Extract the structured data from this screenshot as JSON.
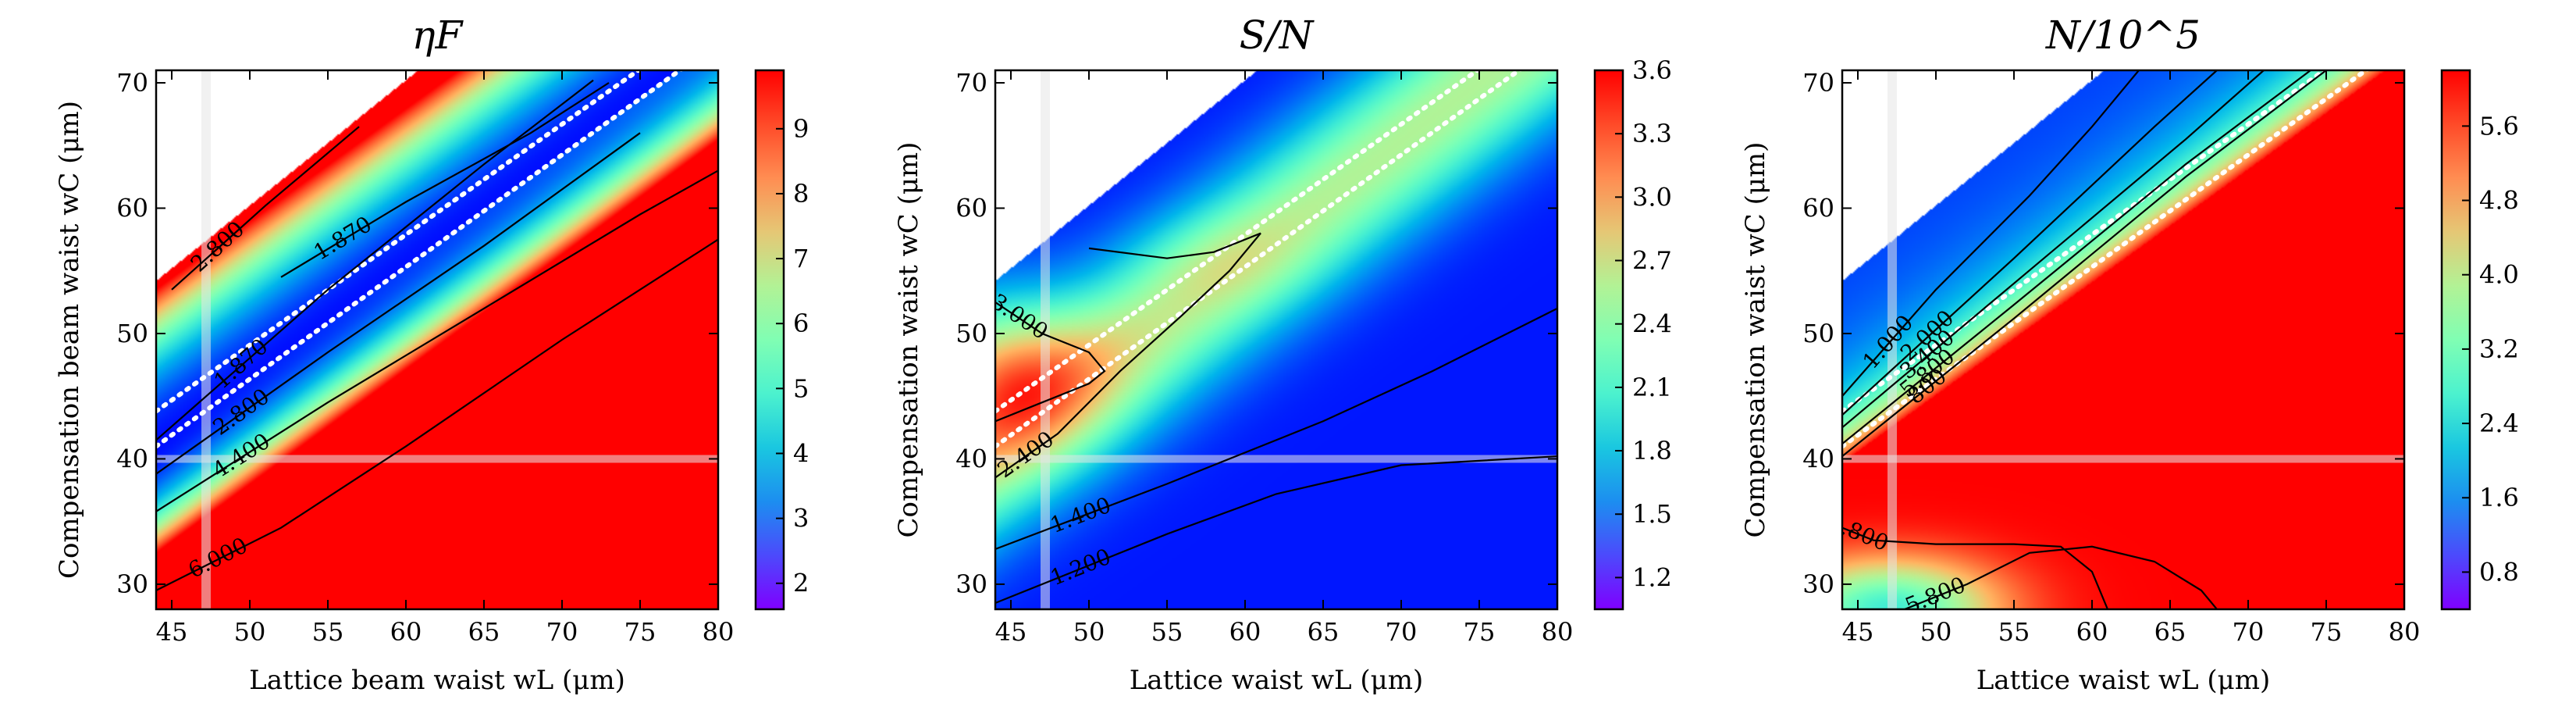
{
  "chart_data": [
    {
      "type": "heatmap",
      "title": "ηF",
      "xlabel": "Lattice beam waist wL (μm)",
      "ylabel": "Compensation beam waist wC (μm)",
      "xlim": [
        44,
        80
      ],
      "ylim": [
        28,
        71
      ],
      "x_ticks": [
        "45",
        "50",
        "55",
        "60",
        "65",
        "70",
        "75",
        "80"
      ],
      "y_ticks": [
        "30",
        "40",
        "50",
        "60",
        "70"
      ],
      "colorbar": {
        "range": [
          1.6,
          9.9
        ],
        "ticks": [
          "2",
          "3",
          "4",
          "5",
          "6",
          "7",
          "8",
          "9"
        ],
        "colormap": "rainbow"
      },
      "field": {
        "type": "eta",
        "masked_region": "wC > wL + 10.2 and wC > 1.1·wL + 3"
      },
      "contour_labels": [
        "2.800",
        "1.870",
        "1.870",
        "2.800",
        "4.400",
        "6.000"
      ],
      "contour_lines": [
        {
          "label": "2.800",
          "points": [
            [
              45,
              53.5
            ],
            [
              51,
              60.2
            ],
            [
              57,
              66.5
            ]
          ]
        },
        {
          "label": "1.870",
          "points": [
            [
              44,
              41.5
            ],
            [
              55,
              53.5
            ],
            [
              65,
              63.5
            ],
            [
              72,
              70.2
            ]
          ]
        },
        {
          "label": "1.870",
          "points": [
            [
              52,
              54.5
            ],
            [
              60,
              60.5
            ],
            [
              68,
              66
            ],
            [
              73,
              70
            ]
          ]
        },
        {
          "label": "2.800",
          "points": [
            [
              44,
              38.8
            ],
            [
              55,
              48.5
            ],
            [
              65,
              57
            ],
            [
              75,
              66
            ]
          ]
        },
        {
          "label": "4.400",
          "points": [
            [
              44,
              35.8
            ],
            [
              55,
              44.5
            ],
            [
              65,
              52
            ],
            [
              75,
              59.5
            ],
            [
              80,
              63
            ]
          ]
        },
        {
          "label": "6.000",
          "points": [
            [
              44,
              29.5
            ],
            [
              52,
              34.5
            ],
            [
              60,
              41
            ],
            [
              70,
              49.5
            ],
            [
              80,
              57.5
            ]
          ]
        }
      ],
      "dotted_lines": [
        [
          [
            44,
            43.8
          ],
          [
            80,
            75.5
          ]
        ],
        [
          [
            44,
            41
          ],
          [
            80,
            73.2
          ]
        ]
      ],
      "reference": {
        "x": 47.2,
        "y": 40
      }
    },
    {
      "type": "heatmap",
      "title": "S/N",
      "xlabel": "Lattice waist wL (μm)",
      "ylabel": "Compensation waist wC (μm)",
      "xlim": [
        44,
        80
      ],
      "ylim": [
        28,
        71
      ],
      "x_ticks": [
        "45",
        "50",
        "55",
        "60",
        "65",
        "70",
        "75",
        "80"
      ],
      "y_ticks": [
        "30",
        "40",
        "50",
        "60",
        "70"
      ],
      "colorbar": {
        "range": [
          1.05,
          3.6
        ],
        "ticks": [
          "1.2",
          "1.5",
          "1.8",
          "2.1",
          "2.4",
          "2.7",
          "3.0",
          "3.3",
          "3.6"
        ],
        "colormap": "rainbow"
      },
      "field": {
        "type": "sn",
        "masked_region": "wC > wL + 10.2 and wC > 1.1·wL + 3"
      },
      "contour_labels": [
        "3.000",
        "2.400",
        "1.400",
        "1.200"
      ],
      "contour_lines": [
        {
          "label": "3.000",
          "points": [
            [
              44,
              52.5
            ],
            [
              47,
              50
            ],
            [
              50,
              48.5
            ],
            [
              51,
              47
            ],
            [
              50,
              46
            ],
            [
              47,
              44.5
            ],
            [
              44,
              43
            ]
          ]
        },
        {
          "label": "2.400",
          "points": [
            [
              44,
              38.5
            ],
            [
              48,
              42
            ],
            [
              52,
              47
            ],
            [
              56,
              51.5
            ],
            [
              59,
              55
            ],
            [
              61,
              58
            ],
            [
              58,
              56.5
            ],
            [
              55,
              56
            ],
            [
              50,
              56.8
            ]
          ]
        },
        {
          "label": "1.400",
          "points": [
            [
              44,
              32.8
            ],
            [
              55,
              38
            ],
            [
              65,
              43
            ],
            [
              72,
              47
            ],
            [
              80,
              52
            ]
          ]
        },
        {
          "label": "1.200",
          "points": [
            [
              44,
              28.5
            ],
            [
              55,
              34
            ],
            [
              62,
              37.2
            ],
            [
              70,
              39.5
            ],
            [
              80,
              40.2
            ]
          ]
        }
      ],
      "dotted_lines": [
        [
          [
            44,
            43.8
          ],
          [
            80,
            75.5
          ]
        ],
        [
          [
            44,
            41
          ],
          [
            80,
            73.2
          ]
        ]
      ],
      "reference": {
        "x": 47.2,
        "y": 40
      }
    },
    {
      "type": "heatmap",
      "title": "N/10^5",
      "xlabel": "Lattice waist wL (μm)",
      "ylabel": "Compensation waist wC (μm)",
      "xlim": [
        44,
        80
      ],
      "ylim": [
        28,
        71
      ],
      "x_ticks": [
        "45",
        "50",
        "55",
        "60",
        "65",
        "70",
        "75",
        "80"
      ],
      "y_ticks": [
        "30",
        "40",
        "50",
        "60",
        "70"
      ],
      "colorbar": {
        "range": [
          0.4,
          6.2
        ],
        "ticks": [
          "0.8",
          "1.6",
          "2.4",
          "3.2",
          "4.0",
          "4.8",
          "5.6"
        ],
        "colormap": "rainbow"
      },
      "field": {
        "type": "n",
        "masked_region": "wC > wL + 10.2 and wC > 1.1·wL + 3"
      },
      "contour_labels": [
        "1.000",
        "2.000",
        "3.400",
        "5.800",
        "800",
        "4.800",
        "5.800"
      ],
      "contour_lines": [
        {
          "label": "1.000",
          "points": [
            [
              44,
              45
            ],
            [
              50,
              53.5
            ],
            [
              56,
              61
            ],
            [
              60,
              66.5
            ],
            [
              63,
              71
            ]
          ]
        },
        {
          "label": "2.000",
          "points": [
            [
              44,
              43.5
            ],
            [
              55,
              56
            ],
            [
              64,
              66.5
            ],
            [
              68,
              71
            ]
          ]
        },
        {
          "label": "3.400",
          "points": [
            [
              44,
              42.5
            ],
            [
              55,
              54
            ],
            [
              66,
              65.5
            ],
            [
              71,
              71
            ]
          ]
        },
        {
          "label": "5.800",
          "points": [
            [
              44,
              41.2
            ],
            [
              55,
              52.3
            ],
            [
              66,
              63.5
            ],
            [
              74,
              71
            ]
          ]
        },
        {
          "label": "800",
          "points": [
            [
              44,
              40.2
            ],
            [
              55,
              51.2
            ],
            [
              66,
              62.5
            ],
            [
              75,
              71
            ]
          ]
        },
        {
          "label": "4.800",
          "points": [
            [
              44,
              34.5
            ],
            [
              46,
              33.5
            ],
            [
              50,
              33.2
            ],
            [
              55,
              33.2
            ],
            [
              58,
              33
            ],
            [
              60,
              31
            ],
            [
              61,
              28
            ]
          ]
        },
        {
          "label": "5.800",
          "points": [
            [
              48,
              28
            ],
            [
              52,
              30
            ],
            [
              56,
              32.5
            ],
            [
              60,
              33
            ],
            [
              64,
              31.8
            ],
            [
              67,
              29.5
            ],
            [
              68,
              28
            ]
          ]
        }
      ],
      "dotted_lines": [
        [
          [
            44,
            43.8
          ],
          [
            80,
            75.5
          ]
        ],
        [
          [
            44,
            41
          ],
          [
            80,
            73.2
          ]
        ]
      ],
      "reference": {
        "x": 47.2,
        "y": 40
      }
    }
  ]
}
